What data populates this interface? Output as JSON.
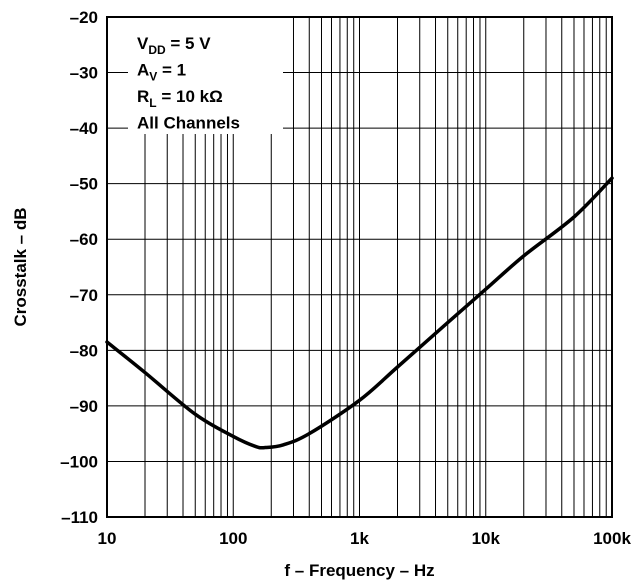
{
  "chart_data": {
    "type": "line",
    "title": "",
    "xlabel": "f – Frequency – Hz",
    "ylabel": "Crosstalk – dB",
    "xscale": "log",
    "xlim": [
      10,
      100000
    ],
    "ylim": [
      -110,
      -20
    ],
    "grid": true,
    "x_ticks": [
      10,
      100,
      1000,
      10000,
      100000
    ],
    "x_tick_labels": [
      "10",
      "100",
      "1k",
      "10k",
      "100k"
    ],
    "y_ticks": [
      -20,
      -30,
      -40,
      -50,
      -60,
      -70,
      -80,
      -90,
      -100,
      -110
    ],
    "y_tick_labels": [
      "–20",
      "–30",
      "–40",
      "–50",
      "–60",
      "–70",
      "–80",
      "–90",
      "–100",
      "–110"
    ],
    "legend_placement": "top-left",
    "conditions": [
      {
        "main": "V",
        "sub": "DD",
        "rest": " = 5 V"
      },
      {
        "main": "A",
        "sub": "V",
        "rest": " = 1"
      },
      {
        "main": "R",
        "sub": "L",
        "rest": " = 10 kΩ"
      },
      {
        "main": "All Channels",
        "sub": "",
        "rest": ""
      }
    ],
    "series": [
      {
        "x": [
          10,
          20,
          50,
          100,
          150,
          180,
          250,
          400,
          1000,
          2000,
          5000,
          10000,
          20000,
          50000,
          100000
        ],
        "y": [
          -78.5,
          -84,
          -91.5,
          -95.5,
          -97.3,
          -97.5,
          -97,
          -95,
          -89,
          -83,
          -75,
          -69,
          -63,
          -56,
          -49
        ]
      }
    ]
  }
}
